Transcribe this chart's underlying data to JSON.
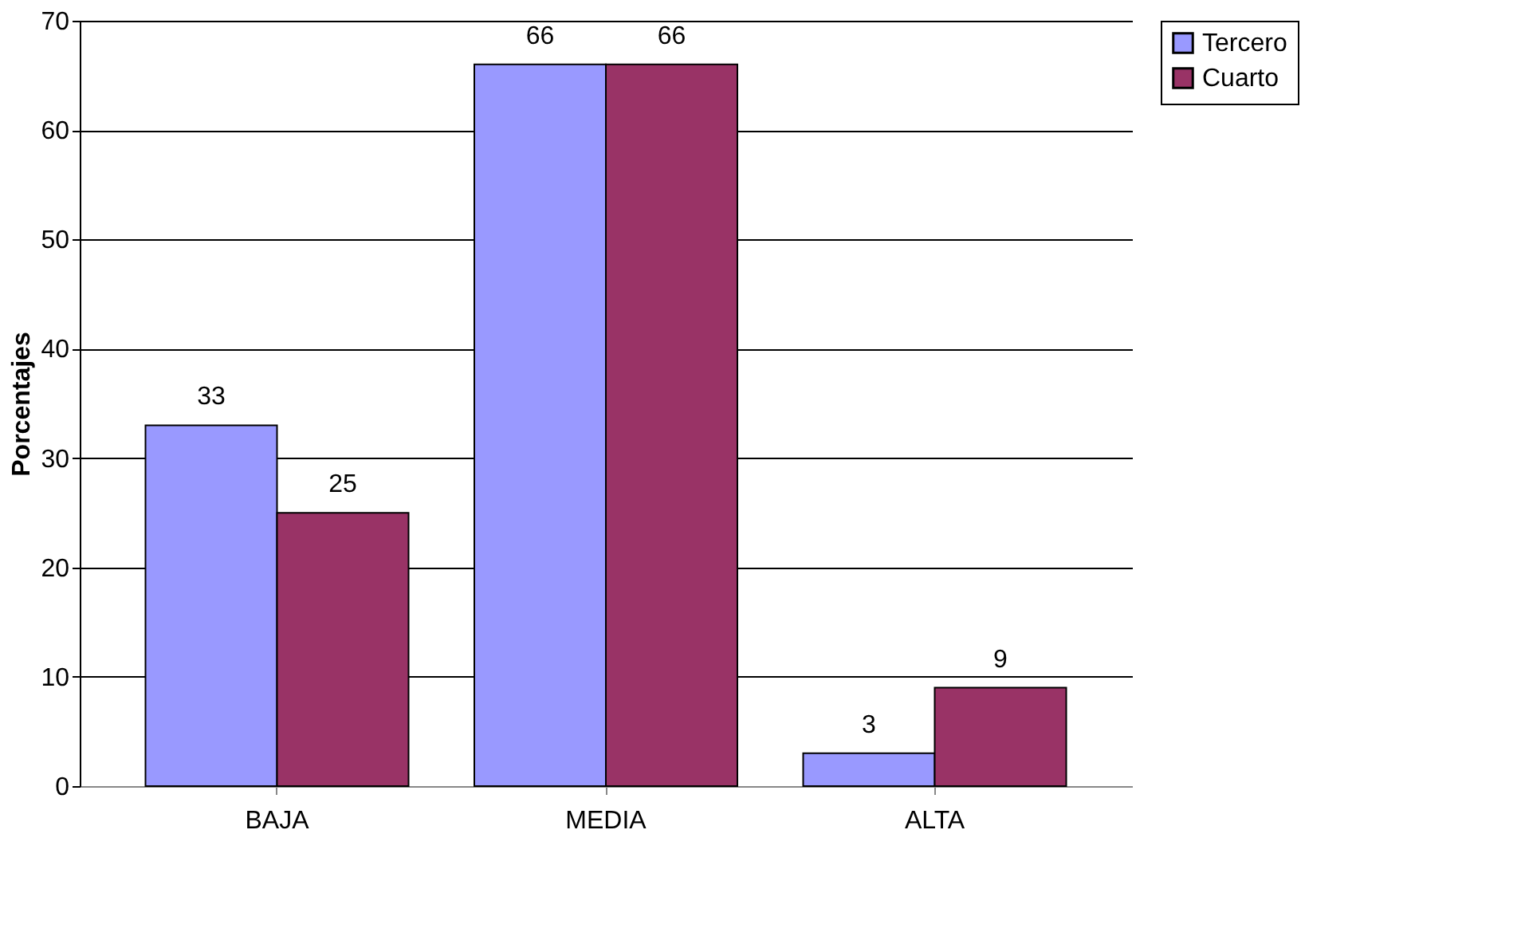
{
  "chart_data": {
    "type": "bar",
    "ylabel": "Porcentajes",
    "categories": [
      "BAJA",
      "MEDIA",
      "ALTA"
    ],
    "series": [
      {
        "name": "Tercero",
        "color": "#9999ff",
        "values": [
          33,
          66,
          3
        ]
      },
      {
        "name": "Cuarto",
        "color": "#993366",
        "values": [
          25,
          66,
          9
        ]
      }
    ],
    "ylim": [
      0,
      70
    ],
    "yticks": [
      0,
      10,
      20,
      30,
      40,
      50,
      60,
      70
    ],
    "grid": "y",
    "legend": "right",
    "data_labels": true
  }
}
